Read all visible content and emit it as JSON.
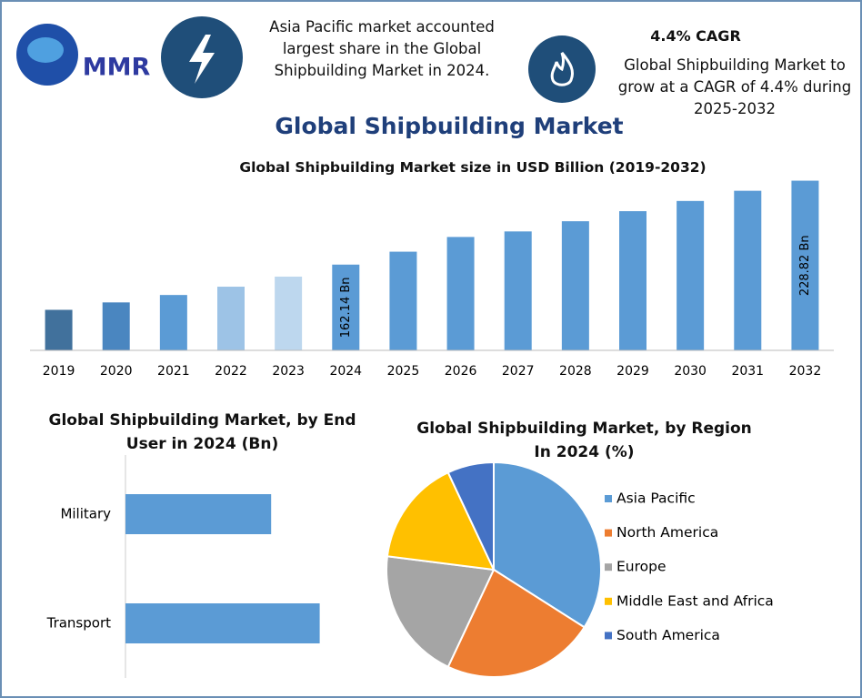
{
  "header": {
    "logo": "MMR",
    "note": "Asia Pacific market accounted largest share in the Global Shipbuilding Market in 2024.",
    "cagr_title": "4.4% CAGR",
    "cagr_text": "Global Shipbuilding Market to grow at a CAGR of 4.4% during 2025-2032",
    "title": "Global Shipbuilding Market"
  },
  "chart_data": [
    {
      "type": "bar",
      "title": "Global Shipbuilding Market size in USD Billion (2019-2032)",
      "categories": [
        "2019",
        "2020",
        "2021",
        "2022",
        "2023",
        "2024",
        "2025",
        "2026",
        "2027",
        "2028",
        "2029",
        "2030",
        "2031",
        "2032"
      ],
      "values": [
        126.2,
        132.1,
        138.0,
        144.6,
        152.6,
        162.14,
        172.4,
        184.1,
        188.5,
        196.6,
        204.6,
        212.7,
        220.8,
        228.82
      ],
      "value_labels": [
        null,
        null,
        null,
        null,
        null,
        "162.14 Bn",
        null,
        null,
        null,
        null,
        null,
        null,
        null,
        "228.82 Bn"
      ],
      "colors": [
        "#41719c",
        "#4a86c0",
        "#5b9bd5",
        "#9dc3e6",
        "#bdd7ee",
        "#5b9bd5",
        "#5b9bd5",
        "#5b9bd5",
        "#5b9bd5",
        "#5b9bd5",
        "#5b9bd5",
        "#5b9bd5",
        "#5b9bd5",
        "#5b9bd5"
      ],
      "ylim": [
        94,
        235
      ]
    },
    {
      "type": "barh",
      "title": "Global Shipbuilding Market, by End User in 2024 (Bn)",
      "categories": [
        "Military",
        "Transport"
      ],
      "values": [
        60,
        80
      ],
      "color": "#5b9bd5",
      "xlim": [
        0,
        100
      ]
    },
    {
      "type": "pie",
      "title": "Global Shipbuilding Market, by Region In 2024 (%)",
      "series": [
        {
          "name": "Asia Pacific",
          "color": "#5b9bd5",
          "values": [
            34
          ]
        },
        {
          "name": "North America",
          "color": "#ed7d31",
          "values": [
            23
          ]
        },
        {
          "name": "Europe",
          "color": "#a5a5a5",
          "values": [
            20
          ]
        },
        {
          "name": "Middle East and Africa",
          "color": "#ffc000",
          "values": [
            16
          ]
        },
        {
          "name": "South America",
          "color": "#4472c4",
          "values": [
            7
          ]
        }
      ],
      "legend": "right"
    }
  ]
}
